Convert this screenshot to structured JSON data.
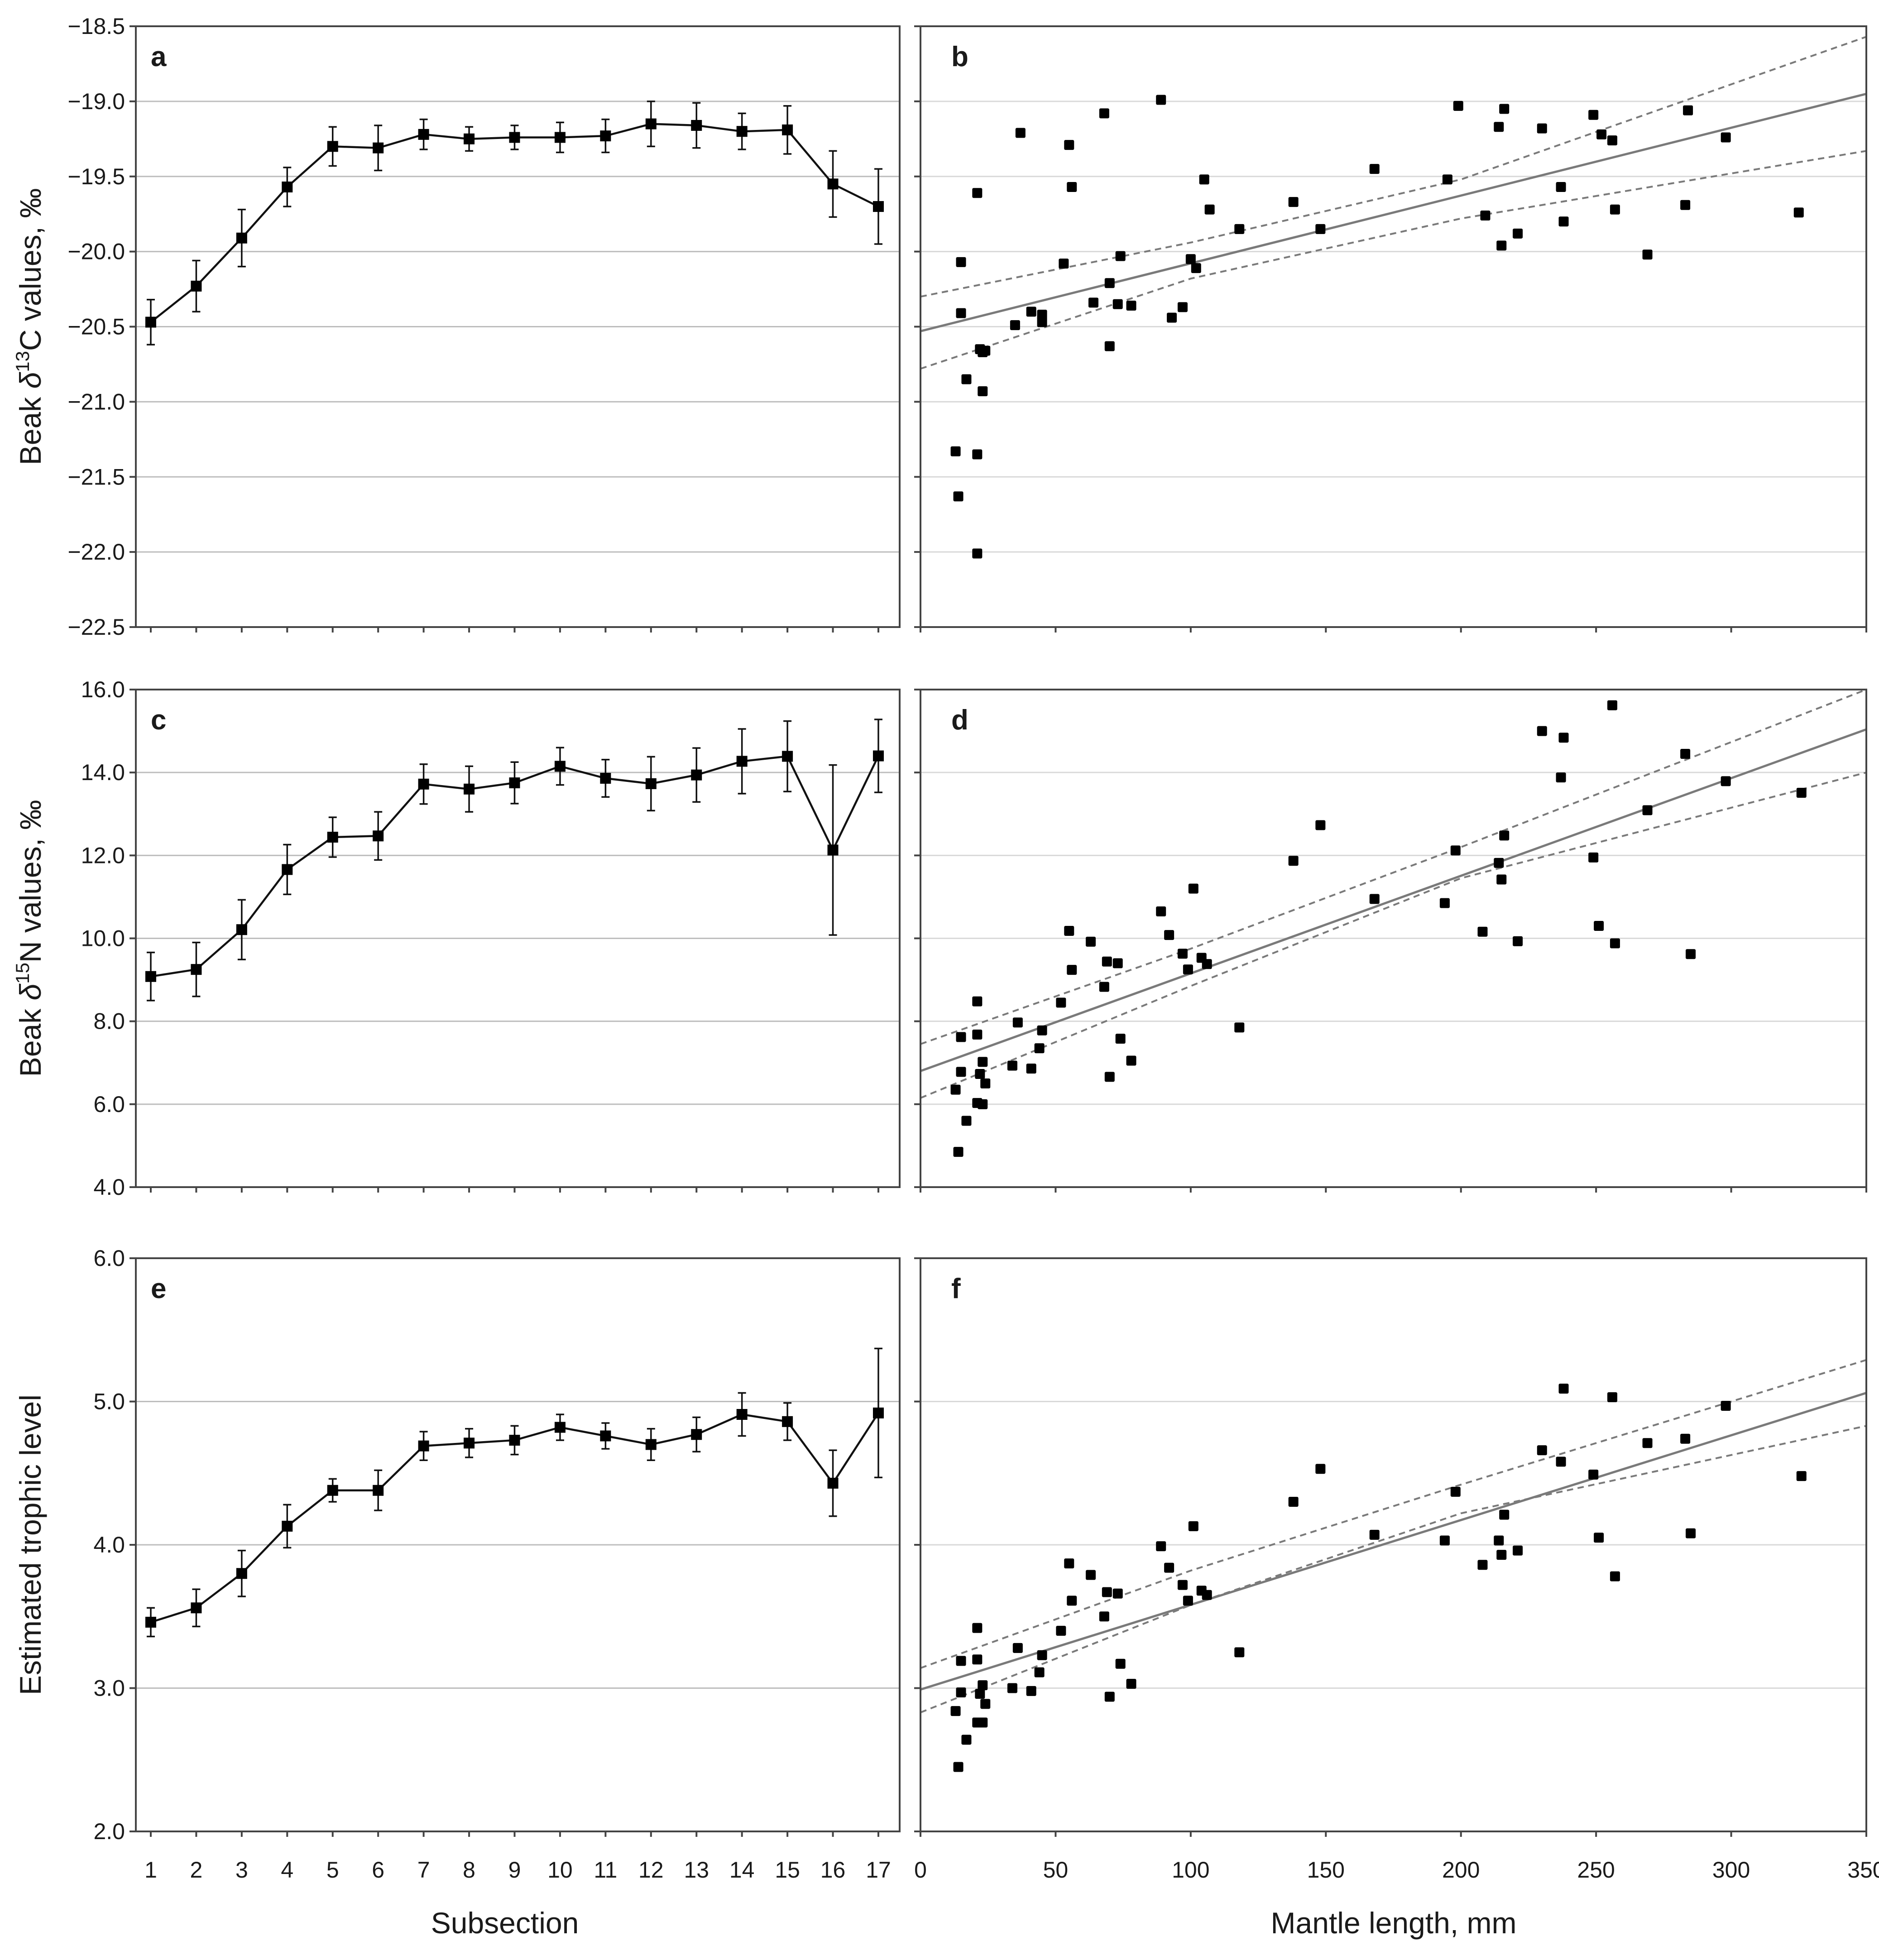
{
  "chart_data": [
    {
      "panel": "a",
      "type": "line",
      "ylabel_html": "Beak δ13C values, ‰",
      "ylabel_parts": [
        "Beak ",
        "δ",
        "13",
        "C values, ‰"
      ],
      "xlabel": "",
      "ylim": [
        -22.5,
        -18.5
      ],
      "yticks": [
        -22.5,
        -22.0,
        -21.5,
        -21.0,
        -20.5,
        -20.0,
        -19.5,
        -19.0,
        -18.5
      ],
      "ytick_labels": [
        "−22.5",
        "−22.0",
        "−21.5",
        "−21.0",
        "−20.5",
        "−20.0",
        "−19.5",
        "−19.0",
        "−18.5"
      ],
      "categories": [
        1,
        2,
        3,
        4,
        5,
        6,
        7,
        8,
        9,
        10,
        11,
        12,
        13,
        14,
        15,
        16,
        17
      ],
      "values": [
        -20.47,
        -20.23,
        -19.91,
        -19.57,
        -19.3,
        -19.31,
        -19.22,
        -19.25,
        -19.24,
        -19.24,
        -19.23,
        -19.15,
        -19.16,
        -19.2,
        -19.19,
        -19.55,
        -19.7
      ],
      "errors": [
        0.15,
        0.17,
        0.19,
        0.13,
        0.13,
        0.15,
        0.1,
        0.08,
        0.08,
        0.1,
        0.11,
        0.15,
        0.15,
        0.12,
        0.16,
        0.22,
        0.25
      ]
    },
    {
      "panel": "b",
      "type": "scatter",
      "ylim": [
        -22.5,
        -18.5
      ],
      "xlim": [
        0,
        350
      ],
      "points": [
        [
          13,
          -21.33
        ],
        [
          14,
          -21.63
        ],
        [
          15,
          -20.07
        ],
        [
          15,
          -20.41
        ],
        [
          17,
          -20.85
        ],
        [
          21,
          -19.61
        ],
        [
          21,
          -21.35
        ],
        [
          21,
          -22.01
        ],
        [
          22,
          -20.65
        ],
        [
          23,
          -20.93
        ],
        [
          23,
          -20.67
        ],
        [
          24,
          -20.66
        ],
        [
          35,
          -20.49
        ],
        [
          37,
          -19.21
        ],
        [
          41,
          -20.4
        ],
        [
          45,
          -20.42
        ],
        [
          45,
          -20.47
        ],
        [
          53,
          -20.08
        ],
        [
          55,
          -19.29
        ],
        [
          56,
          -19.57
        ],
        [
          64,
          -20.34
        ],
        [
          68,
          -19.08
        ],
        [
          70,
          -20.21
        ],
        [
          70,
          -20.63
        ],
        [
          73,
          -20.35
        ],
        [
          74,
          -20.03
        ],
        [
          78,
          -20.36
        ],
        [
          89,
          -18.99
        ],
        [
          93,
          -20.44
        ],
        [
          97,
          -20.37
        ],
        [
          100,
          -20.05
        ],
        [
          102,
          -20.11
        ],
        [
          105,
          -19.52
        ],
        [
          107,
          -19.72
        ],
        [
          118,
          -19.85
        ],
        [
          138,
          -19.67
        ],
        [
          148,
          -19.85
        ],
        [
          168,
          -19.45
        ],
        [
          195,
          -19.52
        ],
        [
          199,
          -19.03
        ],
        [
          209,
          -19.76
        ],
        [
          214,
          -19.17
        ],
        [
          215,
          -19.96
        ],
        [
          216,
          -19.05
        ],
        [
          221,
          -19.88
        ],
        [
          230,
          -19.18
        ],
        [
          237,
          -19.57
        ],
        [
          238,
          -19.8
        ],
        [
          249,
          -19.09
        ],
        [
          252,
          -19.22
        ],
        [
          256,
          -19.26
        ],
        [
          257,
          -19.72
        ],
        [
          269,
          -20.02
        ],
        [
          283,
          -19.69
        ],
        [
          284,
          -19.06
        ],
        [
          298,
          -19.24
        ],
        [
          325,
          -19.74
        ]
      ],
      "fit": {
        "x": [
          0,
          350
        ],
        "y": [
          -20.53,
          -18.95
        ]
      },
      "ci_upper": {
        "x": [
          0,
          100,
          200,
          350
        ],
        "y": [
          -20.3,
          -19.94,
          -19.52,
          -18.57
        ]
      },
      "ci_lower": {
        "x": [
          0,
          100,
          200,
          350
        ],
        "y": [
          -20.78,
          -20.18,
          -19.78,
          -19.33
        ]
      }
    },
    {
      "panel": "c",
      "type": "line",
      "ylabel_parts": [
        "Beak ",
        "δ",
        "15",
        "N values, ‰"
      ],
      "ylim": [
        4.0,
        16.0
      ],
      "yticks": [
        4,
        6,
        8,
        10,
        12,
        14,
        16
      ],
      "ytick_labels": [
        "4.0",
        "6.0",
        "8.0",
        "10.0",
        "12.0",
        "14.0",
        "16.0"
      ],
      "categories": [
        1,
        2,
        3,
        4,
        5,
        6,
        7,
        8,
        9,
        10,
        11,
        12,
        13,
        14,
        15,
        16,
        17
      ],
      "values": [
        9.08,
        9.25,
        10.21,
        11.66,
        12.44,
        12.47,
        13.72,
        13.6,
        13.75,
        14.15,
        13.86,
        13.73,
        13.94,
        14.27,
        14.39,
        12.13,
        14.4
      ],
      "errors": [
        0.58,
        0.65,
        0.72,
        0.6,
        0.48,
        0.58,
        0.48,
        0.55,
        0.5,
        0.45,
        0.45,
        0.65,
        0.65,
        0.78,
        0.85,
        2.05,
        0.88
      ]
    },
    {
      "panel": "d",
      "type": "scatter",
      "ylim": [
        4.0,
        16.0
      ],
      "xlim": [
        0,
        350
      ],
      "points": [
        [
          13,
          6.35
        ],
        [
          14,
          4.85
        ],
        [
          15,
          7.62
        ],
        [
          15,
          6.78
        ],
        [
          17,
          5.6
        ],
        [
          21,
          8.48
        ],
        [
          21,
          7.68
        ],
        [
          21,
          6.03
        ],
        [
          22,
          6.73
        ],
        [
          23,
          7.02
        ],
        [
          23,
          6.0
        ],
        [
          24,
          6.5
        ],
        [
          34,
          6.93
        ],
        [
          36,
          7.97
        ],
        [
          41,
          6.86
        ],
        [
          44,
          7.35
        ],
        [
          45,
          7.78
        ],
        [
          52,
          8.45
        ],
        [
          55,
          10.18
        ],
        [
          56,
          9.24
        ],
        [
          63,
          9.92
        ],
        [
          68,
          8.83
        ],
        [
          69,
          9.44
        ],
        [
          70,
          6.66
        ],
        [
          73,
          9.4
        ],
        [
          74,
          7.58
        ],
        [
          78,
          7.05
        ],
        [
          89,
          10.65
        ],
        [
          92,
          10.08
        ],
        [
          97,
          9.63
        ],
        [
          99,
          9.25
        ],
        [
          101,
          11.2
        ],
        [
          104,
          9.53
        ],
        [
          106,
          9.38
        ],
        [
          118,
          7.85
        ],
        [
          138,
          11.87
        ],
        [
          148,
          12.73
        ],
        [
          168,
          10.95
        ],
        [
          194,
          10.85
        ],
        [
          198,
          12.12
        ],
        [
          208,
          10.16
        ],
        [
          214,
          11.82
        ],
        [
          215,
          11.42
        ],
        [
          216,
          12.48
        ],
        [
          221,
          9.93
        ],
        [
          230,
          15.0
        ],
        [
          237,
          13.88
        ],
        [
          238,
          14.84
        ],
        [
          249,
          11.95
        ],
        [
          251,
          10.3
        ],
        [
          256,
          15.62
        ],
        [
          257,
          9.88
        ],
        [
          269,
          13.09
        ],
        [
          283,
          14.45
        ],
        [
          285,
          9.62
        ],
        [
          298,
          13.79
        ],
        [
          326,
          13.51
        ]
      ],
      "fit": {
        "x": [
          0,
          350
        ],
        "y": [
          6.8,
          15.04
        ]
      },
      "ci_upper": {
        "x": [
          0,
          100,
          200,
          350
        ],
        "y": [
          7.45,
          9.75,
          12.2,
          16.0
        ]
      },
      "ci_lower": {
        "x": [
          0,
          100,
          200,
          350
        ],
        "y": [
          6.15,
          8.85,
          11.45,
          14.0
        ]
      }
    },
    {
      "panel": "e",
      "type": "line",
      "ylabel_parts": [
        "Estimated trophic level"
      ],
      "xlabel": "Subsection",
      "ylim": [
        2.0,
        6.0
      ],
      "yticks": [
        2,
        3,
        4,
        5,
        6
      ],
      "ytick_labels": [
        "2.0",
        "3.0",
        "4.0",
        "5.0",
        "6.0"
      ],
      "categories": [
        1,
        2,
        3,
        4,
        5,
        6,
        7,
        8,
        9,
        10,
        11,
        12,
        13,
        14,
        15,
        16,
        17
      ],
      "values": [
        3.46,
        3.56,
        3.8,
        4.13,
        4.38,
        4.38,
        4.69,
        4.71,
        4.73,
        4.82,
        4.76,
        4.7,
        4.77,
        4.91,
        4.86,
        4.43,
        4.92
      ],
      "errors": [
        0.1,
        0.13,
        0.16,
        0.15,
        0.08,
        0.14,
        0.1,
        0.1,
        0.1,
        0.09,
        0.09,
        0.11,
        0.12,
        0.15,
        0.13,
        0.23,
        0.45
      ]
    },
    {
      "panel": "f",
      "type": "scatter",
      "xlabel": "Mantle length, mm",
      "ylim": [
        2.0,
        6.0
      ],
      "xlim": [
        0,
        350
      ],
      "xticks": [
        0,
        50,
        100,
        150,
        200,
        250,
        300,
        350
      ],
      "xtick_labels": [
        "0",
        "50",
        "100",
        "150",
        "200",
        "250",
        "300",
        "350"
      ],
      "points": [
        [
          13,
          2.84
        ],
        [
          14,
          2.45
        ],
        [
          15,
          3.19
        ],
        [
          15,
          2.97
        ],
        [
          17,
          2.64
        ],
        [
          21,
          3.42
        ],
        [
          21,
          3.2
        ],
        [
          21,
          2.76
        ],
        [
          22,
          2.96
        ],
        [
          23,
          3.02
        ],
        [
          23,
          2.76
        ],
        [
          24,
          2.89
        ],
        [
          34,
          3.0
        ],
        [
          36,
          3.28
        ],
        [
          41,
          2.98
        ],
        [
          44,
          3.11
        ],
        [
          45,
          3.23
        ],
        [
          52,
          3.4
        ],
        [
          55,
          3.87
        ],
        [
          56,
          3.61
        ],
        [
          63,
          3.79
        ],
        [
          68,
          3.5
        ],
        [
          69,
          3.67
        ],
        [
          70,
          2.94
        ],
        [
          73,
          3.66
        ],
        [
          74,
          3.17
        ],
        [
          78,
          3.03
        ],
        [
          89,
          3.99
        ],
        [
          92,
          3.84
        ],
        [
          97,
          3.72
        ],
        [
          99,
          3.61
        ],
        [
          101,
          4.13
        ],
        [
          104,
          3.68
        ],
        [
          106,
          3.65
        ],
        [
          118,
          3.25
        ],
        [
          138,
          4.3
        ],
        [
          148,
          4.53
        ],
        [
          168,
          4.07
        ],
        [
          194,
          4.03
        ],
        [
          198,
          4.37
        ],
        [
          208,
          3.86
        ],
        [
          214,
          4.03
        ],
        [
          215,
          3.93
        ],
        [
          216,
          4.21
        ],
        [
          221,
          3.96
        ],
        [
          230,
          4.66
        ],
        [
          237,
          4.58
        ],
        [
          238,
          5.09
        ],
        [
          249,
          4.49
        ],
        [
          251,
          4.05
        ],
        [
          256,
          5.03
        ],
        [
          257,
          3.78
        ],
        [
          269,
          4.71
        ],
        [
          283,
          4.74
        ],
        [
          285,
          4.08
        ],
        [
          298,
          4.97
        ],
        [
          326,
          4.48
        ]
      ],
      "fit": {
        "x": [
          0,
          350
        ],
        "y": [
          2.99,
          5.06
        ]
      },
      "ci_upper": {
        "x": [
          0,
          100,
          200,
          350
        ],
        "y": [
          3.14,
          3.82,
          4.42,
          5.29
        ]
      },
      "ci_lower": {
        "x": [
          0,
          100,
          200,
          350
        ],
        "y": [
          2.83,
          3.58,
          4.22,
          4.83
        ]
      }
    }
  ],
  "panel_labels": [
    "a",
    "b",
    "c",
    "d",
    "e",
    "f"
  ],
  "x_axis_left": {
    "label": "Subsection",
    "tick_labels": [
      "1",
      "2",
      "3",
      "4",
      "5",
      "6",
      "7",
      "8",
      "9",
      "10",
      "11",
      "12",
      "13",
      "14",
      "15",
      "16",
      "17"
    ]
  },
  "x_axis_right": {
    "label": "Mantle length, mm",
    "tick_labels": [
      "0",
      "50",
      "100",
      "150",
      "200",
      "250",
      "300",
      "350"
    ]
  }
}
